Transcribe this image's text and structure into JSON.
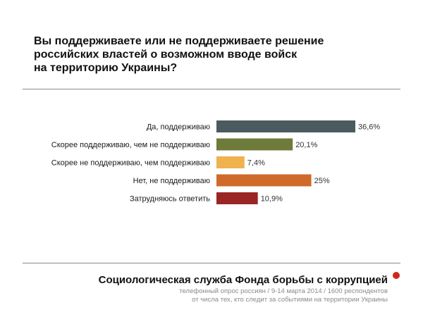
{
  "title_lines": [
    "Вы поддерживаете или не поддерживаете решение",
    "российских властей о возможном вводе войск",
    "на территорию Украины?"
  ],
  "footer": {
    "organization": "Социологическая служба Фонда борьбы с коррупцией",
    "note_lines": [
      "телефонный опрос россиян / 9-14 марта 2014 / 1600 респондентов",
      "от числа тех, кто следит за событиями на территории Украины"
    ],
    "dot_color": "#d0271d"
  },
  "chart_data": {
    "type": "bar",
    "orientation": "horizontal",
    "categories": [
      "Да, поддерживаю",
      "Скорее поддерживаю, чем не поддерживаю",
      "Скорее не поддерживаю, чем поддерживаю",
      "Нет, не поддерживаю",
      "Затрудняюсь ответить"
    ],
    "values": [
      36.6,
      20.1,
      7.4,
      25,
      10.9
    ],
    "value_labels": [
      "36,6%",
      "20,1%",
      "7,4%",
      "25%",
      "10,9%"
    ],
    "colors": [
      "#4b5a5e",
      "#6e7b3a",
      "#f0b24e",
      "#cf6a2a",
      "#9b2424"
    ],
    "unit": "%",
    "xlim": [
      0,
      36.6
    ],
    "grid": false,
    "legend": "none"
  }
}
